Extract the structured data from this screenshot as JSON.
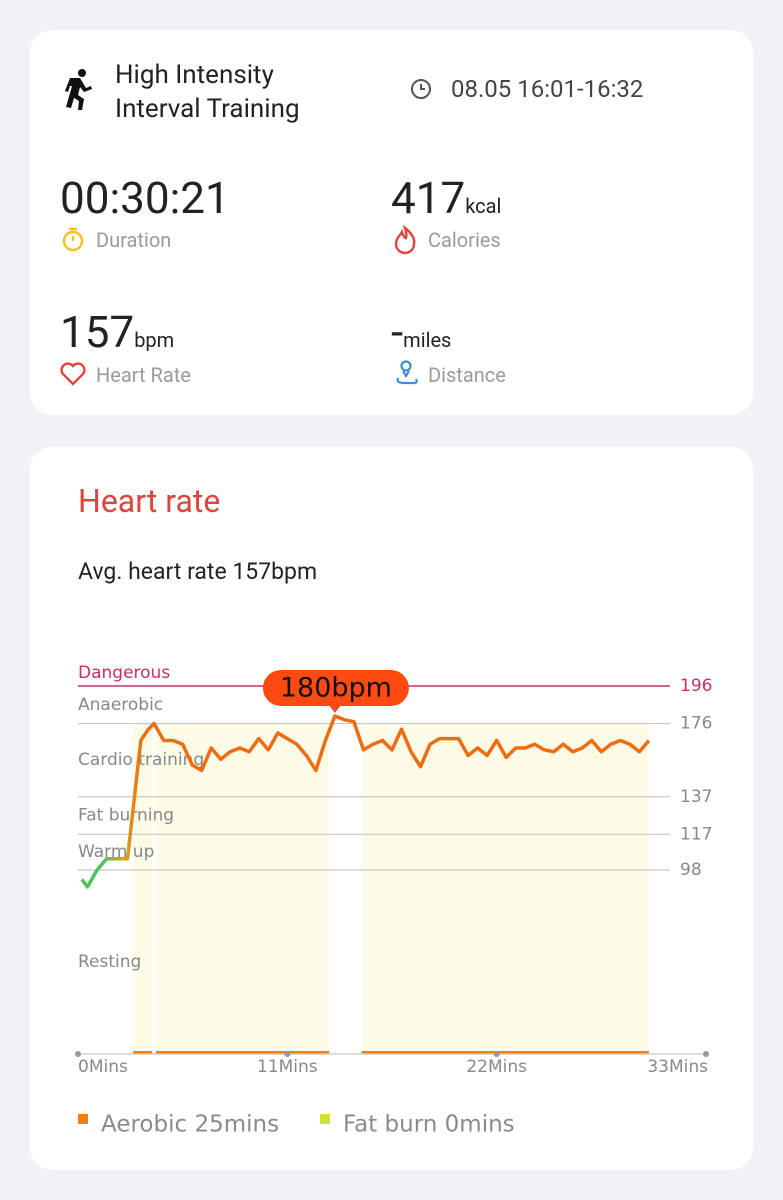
{
  "workout": {
    "title_lines": [
      "High Intensity",
      "Interval Training"
    ],
    "time": "08.05 16:01-16:32"
  },
  "stats": [
    {
      "value": "00:30:21",
      "label": "Duration"
    },
    {
      "value": "417",
      "unit": "kcal",
      "label": "Calories"
    },
    {
      "value": "157",
      "unit": "bpm",
      "label": "Heart Rate"
    },
    {
      "value": "-",
      "unit": "miles",
      "label": "Distance"
    }
  ],
  "heart_rate": {
    "title": "Heart rate",
    "summary": "Avg. heart rate 157bpm",
    "chart_data": {
      "type": "line",
      "x": [
        0.2,
        0.5,
        1,
        1.5,
        2,
        2.6,
        3,
        3.3,
        3.7,
        4,
        4.5,
        5,
        5.5,
        6,
        6.5,
        7,
        7.5,
        8,
        8.5,
        9,
        9.5,
        10,
        10.5,
        11,
        11.5,
        12,
        12.5,
        13,
        13.5,
        14,
        14.5,
        15,
        15.5,
        16,
        16.5,
        17,
        17.5,
        18,
        18.5,
        19,
        19.5,
        20,
        20.5,
        21,
        21.5,
        22,
        22.5,
        23,
        23.5,
        24,
        24.5,
        25,
        25.5,
        26,
        26.5,
        27,
        27.5,
        28,
        28.5,
        29,
        29.5,
        30
      ],
      "values": [
        93,
        89,
        98,
        104,
        104,
        104,
        140,
        167,
        173,
        176,
        167,
        167,
        165,
        154,
        151,
        163,
        157,
        161,
        163,
        161,
        168,
        162,
        171,
        168,
        165,
        159,
        151,
        167,
        180,
        178,
        177,
        162,
        165,
        167,
        162,
        173,
        161,
        153,
        165,
        168,
        168,
        168,
        159,
        163,
        159,
        167,
        158,
        163,
        163,
        165,
        162,
        161,
        165,
        161,
        163,
        167,
        161,
        165,
        167,
        165,
        161,
        167
      ],
      "start_color": "#4cc45a",
      "color": "#f06b12",
      "xlim": [
        0,
        33
      ],
      "xticks": [
        {
          "value": 0,
          "label": "0Mins"
        },
        {
          "value": 11,
          "label": "11Mins"
        },
        {
          "value": 22,
          "label": "22Mins"
        },
        {
          "value": 33,
          "label": "33Mins"
        }
      ],
      "ylim": [
        0,
        210
      ],
      "yticks": [
        98,
        117,
        137,
        176,
        196
      ],
      "zones": [
        "Resting",
        "Warm up",
        "Fat burning",
        "Cardio training",
        "Anaerobic",
        "Dangerous"
      ],
      "danger_color": "#c2306a",
      "annotation": {
        "label": "180bpm",
        "x": 13.5,
        "value": 180
      },
      "periods": [
        [
          2.9,
          3.9
        ],
        [
          4.1,
          13.2
        ],
        [
          14.9,
          30
        ]
      ],
      "period_color": "#fbfbe6",
      "legend": [
        {
          "label": "Aerobic 25mins",
          "color": "#f07f1a"
        },
        {
          "label": "Fat burn 0mins",
          "color": "#cfe03a"
        }
      ]
    }
  }
}
